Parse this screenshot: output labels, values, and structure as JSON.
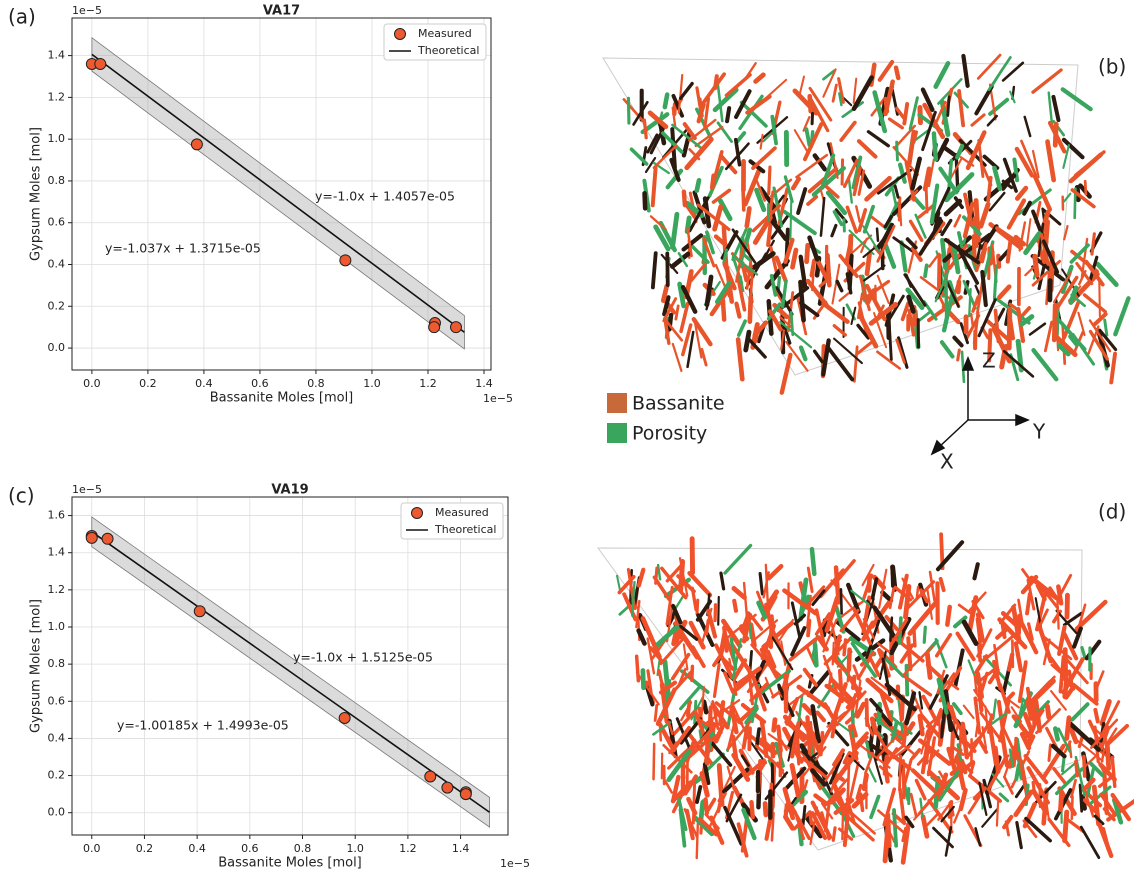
{
  "chart_data": [
    {
      "type": "scatter",
      "title": "VA17",
      "x_label": "Bassanite Moles [mol]",
      "y_label": "Gypsum Moles [mol]",
      "x_offset_label": "1e−5",
      "y_offset_label": "1e−5",
      "xlim": [
        -0.071,
        1.425
      ],
      "ylim": [
        -0.105,
        1.58
      ],
      "xticks": [
        {
          "value": 0,
          "label": "0.0"
        },
        0.2,
        0.4,
        0.6,
        0.8,
        {
          "value": 1,
          "label": "1.0"
        },
        1.2,
        1.4
      ],
      "yticks": [
        {
          "value": 0,
          "label": "0.0"
        },
        0.2,
        0.4,
        0.6,
        0.8,
        {
          "value": 1,
          "label": "1.0"
        },
        1.2,
        1.4
      ],
      "grid": true,
      "legend": "upper right",
      "band_halfwidth": 0.08,
      "series": [
        {
          "name": "Measured",
          "kind": "points",
          "color": "#ee5a2f",
          "x": [
            0.0,
            0.03,
            0.375,
            0.905,
            1.225,
            1.222,
            1.3
          ],
          "values": [
            1.36,
            1.36,
            0.975,
            0.42,
            0.12,
            0.1,
            0.1
          ]
        },
        {
          "name": "Theoretical",
          "kind": "line",
          "color": "#111111",
          "x": [
            0.0,
            1.33
          ],
          "values": [
            1.4057,
            0.0757
          ]
        }
      ],
      "annotations": [
        {
          "text": "y=-1.0x + 1.4057e-05",
          "color": "#111111"
        },
        {
          "text": "y=-1.037x + 1.3715e-05",
          "color": "#ee5a2f"
        }
      ]
    },
    {
      "type": "scatter",
      "title": "VA19",
      "x_label": "Bassanite Moles [mol]",
      "y_label": "Gypsum Moles [mol]",
      "x_offset_label": "1e−5",
      "y_offset_label": "1e−5",
      "xlim": [
        -0.075,
        1.58
      ],
      "ylim": [
        -0.12,
        1.7
      ],
      "xticks": [
        {
          "value": 0,
          "label": "0.0"
        },
        0.2,
        0.4,
        0.6,
        0.8,
        {
          "value": 1,
          "label": "1.0"
        },
        1.2,
        1.4
      ],
      "yticks": [
        {
          "value": 0,
          "label": "0.0"
        },
        0.2,
        0.4,
        0.6,
        0.8,
        {
          "value": 1,
          "label": "1.0"
        },
        1.2,
        1.4,
        1.6
      ],
      "grid": true,
      "legend": "upper right",
      "band_halfwidth": 0.08,
      "series": [
        {
          "name": "Measured",
          "kind": "points",
          "color": "#ee5a2f",
          "x": [
            0.0,
            0.0,
            0.06,
            0.41,
            0.96,
            1.285,
            1.35,
            1.42,
            1.42
          ],
          "values": [
            1.49,
            1.48,
            1.475,
            1.085,
            0.51,
            0.195,
            0.135,
            0.11,
            0.1
          ]
        },
        {
          "name": "Theoretical",
          "kind": "line",
          "color": "#111111",
          "x": [
            0.0,
            1.51
          ],
          "values": [
            1.5125,
            0.0025
          ]
        }
      ],
      "annotations": [
        {
          "text": "y=-1.0x + 1.5125e-05",
          "color": "#111111"
        },
        {
          "text": "y=-1.00185x + 1.4993e-05",
          "color": "#ee5a2f"
        }
      ]
    }
  ],
  "panels": {
    "labels": [
      "(a)",
      "(b)",
      "(c)",
      "(d)"
    ],
    "phases": [
      {
        "name": "Bassanite",
        "color": "#c8693a"
      },
      {
        "name": "Porosity",
        "color": "#3aa55c"
      }
    ],
    "axes3d": [
      "Z",
      "Y",
      "X"
    ]
  }
}
